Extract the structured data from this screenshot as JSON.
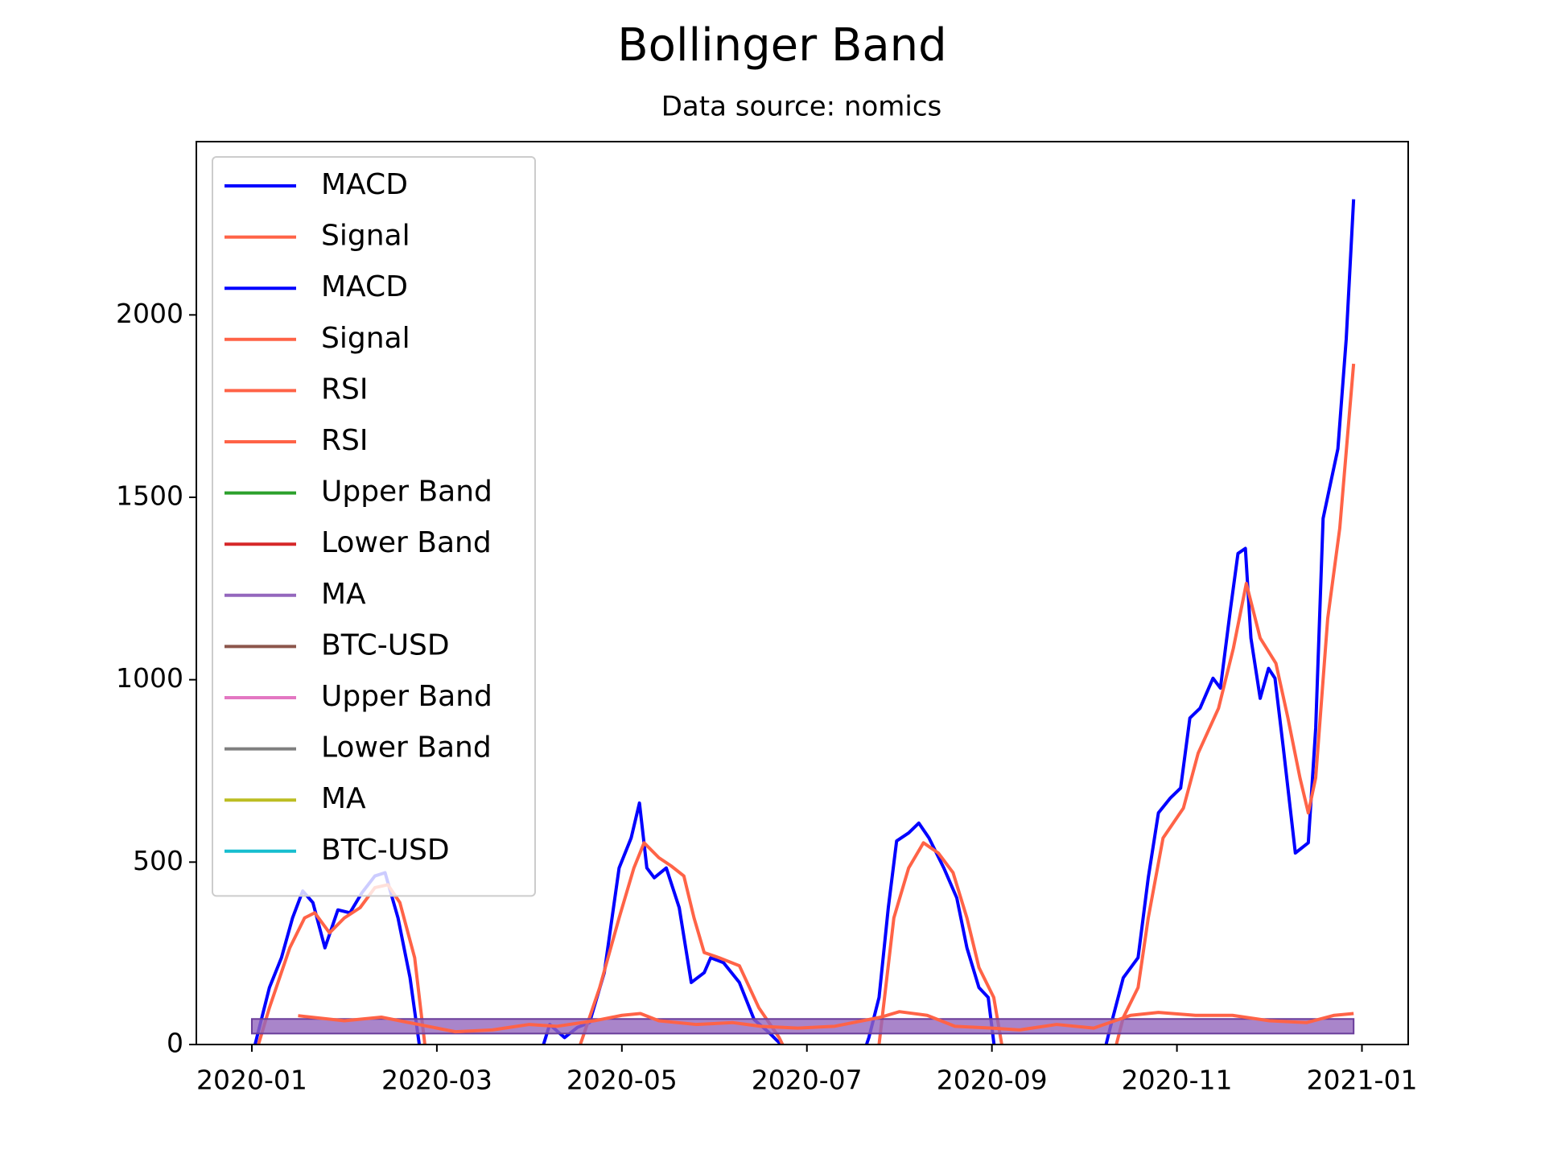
{
  "chart_data": {
    "type": "line",
    "title": "Bollinger Band",
    "subtitle": "Data source: nomics",
    "xlim": [
      -0.6,
      12.5
    ],
    "xticks": [
      {
        "value": 0,
        "label": "2020-01"
      },
      {
        "value": 2,
        "label": "2020-03"
      },
      {
        "value": 4,
        "label": "2020-05"
      },
      {
        "value": 6,
        "label": "2020-07"
      },
      {
        "value": 8,
        "label": "2020-09"
      },
      {
        "value": 10,
        "label": "2020-11"
      },
      {
        "value": 12,
        "label": "2021-01"
      }
    ],
    "ylim": [
      0,
      2475
    ],
    "yticks": [
      0,
      500,
      1000,
      1500,
      2000
    ],
    "legend": "upper left",
    "series": [
      {
        "name": "MACD",
        "color": "#0000ff",
        "x": [
          0,
          0.19,
          0.32,
          0.44,
          0.55,
          0.66,
          0.79,
          0.93,
          1.06,
          1.19,
          1.33,
          1.44,
          1.58,
          1.71,
          1.81,
          1.94,
          3.11,
          3.22,
          3.38,
          3.52,
          3.65,
          3.81,
          3.97,
          4.1,
          4.19,
          4.27,
          4.35,
          4.48,
          4.62,
          4.75,
          4.89,
          4.96,
          5.1,
          5.27,
          5.43,
          5.59,
          5.72,
          5.86,
          6.56,
          6.67,
          6.78,
          6.88,
          6.97,
          7.1,
          7.21,
          7.32,
          7.48,
          7.62,
          7.73,
          7.86,
          7.96,
          8.04,
          9.2,
          9.28,
          9.42,
          9.58,
          9.69,
          9.8,
          9.93,
          10.04,
          10.14,
          10.25,
          10.39,
          10.47,
          10.58,
          10.66,
          10.74,
          10.8,
          10.9,
          10.99,
          11.06,
          11.15,
          11.28,
          11.42,
          11.5,
          11.58,
          11.66,
          11.74,
          11.83,
          11.91
        ],
        "values": [
          -35,
          156,
          238,
          347,
          421,
          389,
          265,
          369,
          361,
          416,
          462,
          471,
          347,
          183,
          0,
          -145,
          -35,
          55,
          19,
          47,
          60,
          197,
          484,
          566,
          662,
          484,
          457,
          484,
          375,
          170,
          197,
          238,
          224,
          170,
          68,
          33,
          0,
          -90,
          -63,
          19,
          129,
          375,
          558,
          580,
          607,
          566,
          484,
          402,
          265,
          156,
          129,
          -35,
          -35,
          47,
          183,
          238,
          457,
          635,
          676,
          703,
          895,
          922,
          1004,
          977,
          1196,
          1346,
          1360,
          1114,
          949,
          1031,
          1004,
          813,
          525,
          553,
          867,
          1442,
          1538,
          1633,
          1934,
          2317
        ]
      },
      {
        "name": "Signal",
        "color": "#ff6347",
        "x": [
          0.03,
          0.19,
          0.41,
          0.57,
          0.68,
          0.84,
          1.0,
          1.17,
          1.33,
          1.47,
          1.6,
          1.76,
          1.87,
          2.03,
          3.43,
          3.54,
          3.76,
          3.97,
          4.13,
          4.24,
          4.4,
          4.53,
          4.67,
          4.78,
          4.89,
          5.05,
          5.27,
          5.48,
          5.7,
          5.86,
          6.67,
          6.78,
          6.94,
          7.1,
          7.26,
          7.42,
          7.58,
          7.73,
          7.86,
          8.02,
          8.13,
          9.31,
          9.42,
          9.58,
          9.69,
          9.85,
          10.07,
          10.23,
          10.45,
          10.61,
          10.75,
          10.9,
          11.07,
          11.2,
          11.33,
          11.42,
          11.5,
          11.63,
          11.76,
          11.91
        ],
        "values": [
          -35,
          101,
          265,
          347,
          361,
          306,
          347,
          375,
          430,
          438,
          389,
          238,
          0,
          -90,
          -90,
          -8,
          156,
          347,
          484,
          553,
          512,
          490,
          462,
          347,
          252,
          238,
          216,
          101,
          19,
          -63,
          -90,
          0,
          347,
          484,
          553,
          525,
          471,
          347,
          211,
          129,
          -35,
          -35,
          74,
          156,
          347,
          566,
          648,
          799,
          922,
          1086,
          1264,
          1114,
          1045,
          895,
          731,
          635,
          731,
          1168,
          1415,
          1866
        ]
      },
      {
        "name": "MACD",
        "color": "#0000ff"
      },
      {
        "name": "Signal",
        "color": "#ff6347"
      },
      {
        "name": "RSI",
        "color": "#ff6347",
        "x": [
          0.5,
          1.0,
          1.4,
          1.8,
          2.2,
          2.6,
          3.0,
          3.3,
          3.7,
          4.0,
          4.2,
          4.4,
          4.8,
          5.2,
          5.5,
          5.9,
          6.3,
          6.8,
          7.0,
          7.3,
          7.6,
          8.0,
          8.3,
          8.7,
          9.1,
          9.5,
          9.8,
          10.2,
          10.6,
          11.0,
          11.4,
          11.7,
          11.91
        ],
        "values": [
          79,
          65,
          75,
          55,
          35,
          40,
          55,
          50,
          65,
          80,
          85,
          65,
          55,
          60,
          50,
          45,
          50,
          75,
          90,
          80,
          50,
          45,
          40,
          55,
          45,
          80,
          88,
          80,
          80,
          65,
          60,
          80,
          85
        ]
      },
      {
        "name": "RSI",
        "color": "#ff6347"
      },
      {
        "name": "Upper Band",
        "color": "#2ca02c"
      },
      {
        "name": "Lower Band",
        "color": "#d62728"
      },
      {
        "name": "MA",
        "color": "#9467bd",
        "x": [
          0,
          11.91
        ],
        "low": [
          30,
          30
        ],
        "high": [
          70,
          70
        ]
      },
      {
        "name": "BTC-USD",
        "color": "#8c564b"
      },
      {
        "name": "Upper Band",
        "color": "#e377c2"
      },
      {
        "name": "Lower Band",
        "color": "#7f7f7f"
      },
      {
        "name": "MA",
        "color": "#bcbd22"
      },
      {
        "name": "BTC-USD",
        "color": "#17becf"
      }
    ]
  }
}
